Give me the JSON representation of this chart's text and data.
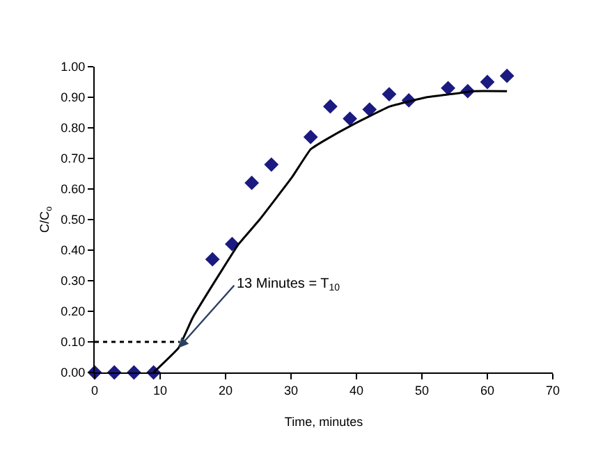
{
  "chart_data": {
    "type": "scatter",
    "xlabel": "Time, minutes",
    "ylabel": "C/C$_{o}$",
    "xlim": [
      0,
      70
    ],
    "xticks": [
      0,
      10,
      20,
      30,
      40,
      50,
      60,
      70
    ],
    "ylim": [
      0,
      1
    ],
    "yticks": [
      {
        "value": 0,
        "label": "0.00"
      },
      {
        "value": 0.1,
        "label": "0.10"
      },
      {
        "value": 0.2,
        "label": "0.20"
      },
      {
        "value": 0.3,
        "label": "0.30"
      },
      {
        "value": 0.4,
        "label": "0.40"
      },
      {
        "value": 0.5,
        "label": "0.50"
      },
      {
        "value": 0.6,
        "label": "0.60"
      },
      {
        "value": 0.7,
        "label": "0.70"
      },
      {
        "value": 0.8,
        "label": "0.80"
      },
      {
        "value": 0.9,
        "label": "0.90"
      },
      {
        "value": 1,
        "label": "1.00"
      }
    ],
    "marker": "diamond",
    "series": [
      {
        "color": "#1a1a80",
        "x": [
          0,
          3,
          6,
          9,
          18,
          21,
          24,
          27,
          33,
          36,
          39,
          42,
          45,
          48,
          54,
          57,
          60,
          63
        ],
        "values": [
          0,
          0,
          0,
          0,
          0.37,
          0.42,
          0.62,
          0.68,
          0.77,
          0.87,
          0.83,
          0.86,
          0.91,
          0.89,
          0.93,
          0.92,
          0.95,
          0.97
        ]
      },
      {
        "type": "line",
        "color": "#000000",
        "marker": "none",
        "line_style": "solid",
        "x": [
          9,
          12.8,
          15,
          19.6,
          22,
          25.2,
          30.2,
          33,
          35.2,
          39.4,
          45.1,
          50.7,
          54.3,
          57.9,
          63
        ],
        "values": [
          0,
          0.08,
          0.18,
          0.34,
          0.42,
          0.5,
          0.64,
          0.73,
          0.76,
          0.81,
          0.87,
          0.9,
          0.91,
          0.92,
          0.92
        ]
      },
      {
        "type": "line",
        "color": "#000000",
        "marker": "none",
        "line_style": "dotted",
        "x": [
          0,
          13
        ],
        "values": [
          0.1,
          0.1
        ]
      }
    ],
    "annotations": [
      {
        "text": "13 Minutes = T$_{10}$",
        "x": 12.8,
        "y": 0.08
      }
    ]
  }
}
